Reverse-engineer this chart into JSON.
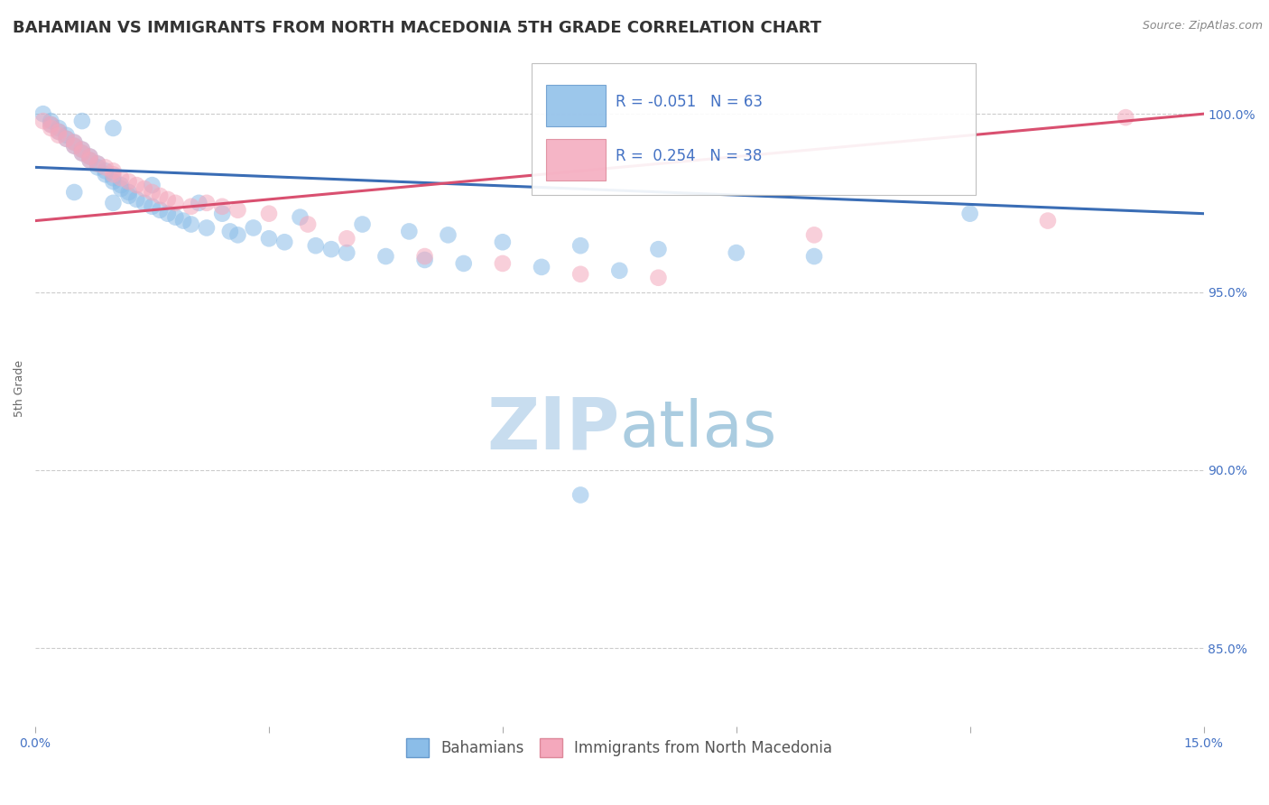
{
  "title": "BAHAMIAN VS IMMIGRANTS FROM NORTH MACEDONIA 5TH GRADE CORRELATION CHART",
  "source_text": "Source: ZipAtlas.com",
  "ylabel": "5th Grade",
  "xlim": [
    0.0,
    0.15
  ],
  "ylim": [
    0.828,
    1.018
  ],
  "xticks": [
    0.0,
    0.03,
    0.06,
    0.09,
    0.12,
    0.15
  ],
  "xticklabels": [
    "0.0%",
    "",
    "",
    "",
    "",
    "15.0%"
  ],
  "ytick_right_vals": [
    0.85,
    0.9,
    0.95,
    1.0
  ],
  "ytick_right_labels": [
    "85.0%",
    "90.0%",
    "95.0%",
    "100.0%"
  ],
  "blue_R": -0.051,
  "blue_N": 63,
  "pink_R": 0.254,
  "pink_N": 38,
  "blue_color": "#8BBDE8",
  "pink_color": "#F4A8BC",
  "blue_line_color": "#3A6DB5",
  "pink_line_color": "#D95070",
  "watermark_zip_color": "#C8DDEF",
  "watermark_atlas_color": "#AACCE0",
  "background_color": "#FFFFFF",
  "grid_color": "#CCCCCC",
  "legend_label_blue": "Bahamians",
  "legend_label_pink": "Immigrants from North Macedonia",
  "blue_scatter_x": [
    0.001,
    0.002,
    0.002,
    0.003,
    0.003,
    0.004,
    0.004,
    0.005,
    0.005,
    0.006,
    0.006,
    0.006,
    0.007,
    0.007,
    0.008,
    0.008,
    0.009,
    0.009,
    0.01,
    0.01,
    0.01,
    0.011,
    0.011,
    0.012,
    0.012,
    0.013,
    0.014,
    0.015,
    0.015,
    0.016,
    0.017,
    0.018,
    0.019,
    0.02,
    0.021,
    0.022,
    0.024,
    0.025,
    0.026,
    0.028,
    0.03,
    0.032,
    0.034,
    0.036,
    0.038,
    0.04,
    0.042,
    0.045,
    0.048,
    0.05,
    0.053,
    0.055,
    0.06,
    0.065,
    0.07,
    0.075,
    0.08,
    0.09,
    0.1,
    0.12,
    0.005,
    0.01,
    0.07
  ],
  "blue_scatter_y": [
    1.0,
    0.998,
    0.997,
    0.996,
    0.995,
    0.994,
    0.993,
    0.992,
    0.991,
    0.99,
    0.989,
    0.998,
    0.988,
    0.987,
    0.986,
    0.985,
    0.984,
    0.983,
    0.982,
    0.981,
    0.996,
    0.98,
    0.979,
    0.978,
    0.977,
    0.976,
    0.975,
    0.974,
    0.98,
    0.973,
    0.972,
    0.971,
    0.97,
    0.969,
    0.975,
    0.968,
    0.972,
    0.967,
    0.966,
    0.968,
    0.965,
    0.964,
    0.971,
    0.963,
    0.962,
    0.961,
    0.969,
    0.96,
    0.967,
    0.959,
    0.966,
    0.958,
    0.964,
    0.957,
    0.963,
    0.956,
    0.962,
    0.961,
    0.96,
    0.972,
    0.978,
    0.975,
    0.893
  ],
  "pink_scatter_x": [
    0.001,
    0.002,
    0.002,
    0.003,
    0.003,
    0.004,
    0.005,
    0.005,
    0.006,
    0.006,
    0.007,
    0.007,
    0.008,
    0.009,
    0.01,
    0.01,
    0.011,
    0.012,
    0.013,
    0.014,
    0.015,
    0.016,
    0.017,
    0.018,
    0.02,
    0.022,
    0.024,
    0.026,
    0.03,
    0.035,
    0.04,
    0.05,
    0.06,
    0.07,
    0.08,
    0.1,
    0.13,
    0.14
  ],
  "pink_scatter_y": [
    0.998,
    0.997,
    0.996,
    0.995,
    0.994,
    0.993,
    0.992,
    0.991,
    0.99,
    0.989,
    0.988,
    0.987,
    0.986,
    0.985,
    0.984,
    0.983,
    0.982,
    0.981,
    0.98,
    0.979,
    0.978,
    0.977,
    0.976,
    0.975,
    0.974,
    0.975,
    0.974,
    0.973,
    0.972,
    0.969,
    0.965,
    0.96,
    0.958,
    0.955,
    0.954,
    0.966,
    0.97,
    0.999
  ],
  "blue_line_x": [
    0.0,
    0.15
  ],
  "blue_line_y": [
    0.985,
    0.972
  ],
  "pink_line_x": [
    0.0,
    0.15
  ],
  "pink_line_y": [
    0.97,
    1.0
  ],
  "dot_size": 180,
  "dot_alpha": 0.55,
  "title_fontsize": 13,
  "axis_label_fontsize": 9,
  "tick_fontsize": 10,
  "legend_fontsize": 12,
  "text_color": "#4472C4",
  "title_color": "#333333",
  "source_color": "#888888"
}
